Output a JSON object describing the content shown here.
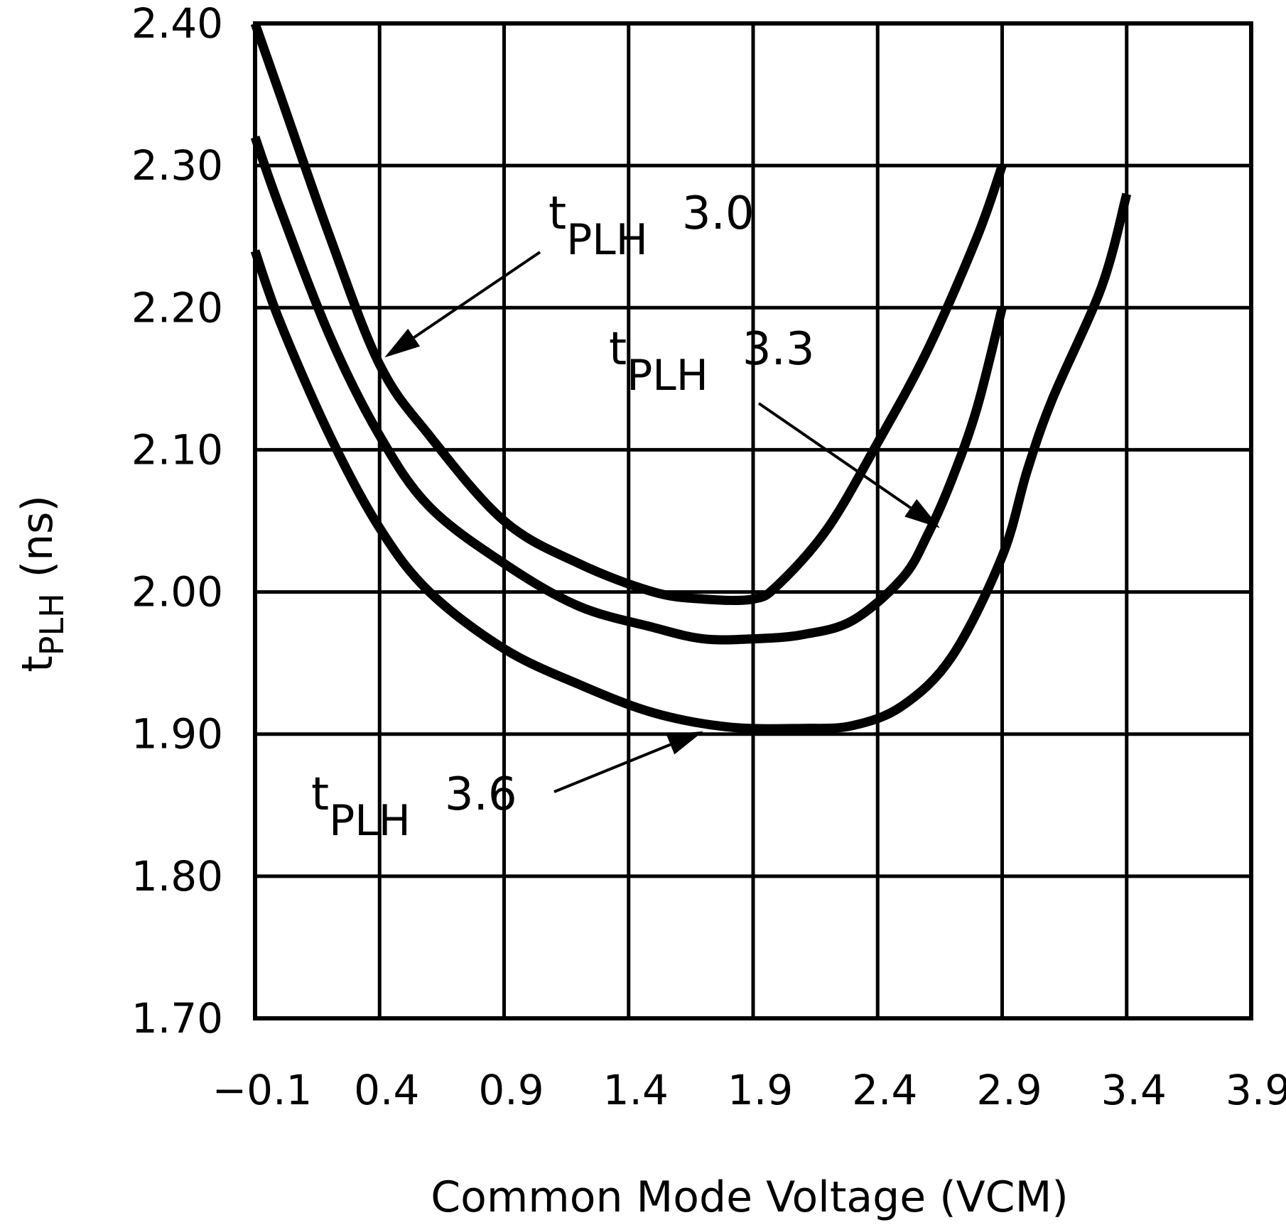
{
  "chart_data": {
    "type": "line",
    "title": "",
    "xlabel": "Common Mode Voltage (VCM)",
    "ylabel": {
      "main": "t",
      "sub": "PLH",
      "unit": "(ns)"
    },
    "xlim": [
      -0.1,
      3.9
    ],
    "ylim": [
      1.7,
      2.4
    ],
    "x_ticks": [
      -0.1,
      0.4,
      0.9,
      1.4,
      1.9,
      2.4,
      2.9,
      3.4,
      3.9
    ],
    "x_tick_labels": [
      "−0.1",
      "0.4",
      "0.9",
      "1.4",
      "1.9",
      "2.4",
      "2.9",
      "3.4",
      "3.9"
    ],
    "y_ticks": [
      1.7,
      1.8,
      1.9,
      2.0,
      2.1,
      2.2,
      2.3,
      2.4
    ],
    "y_tick_labels": [
      "1.70",
      "1.80",
      "1.90",
      "2.00",
      "2.10",
      "2.20",
      "2.30",
      "2.40"
    ],
    "grid": true,
    "series": [
      {
        "name": "tPLH 3.0",
        "label_main": "t",
        "label_sub": "PLH",
        "label_value": "3.0",
        "x": [
          -0.1,
          0.0,
          0.2,
          0.4,
          0.6,
          0.9,
          1.2,
          1.5,
          1.7,
          1.9,
          2.0,
          2.2,
          2.4,
          2.6,
          2.8,
          2.9
        ],
        "y": [
          2.4,
          2.35,
          2.25,
          2.16,
          2.11,
          2.05,
          2.02,
          2.0,
          1.995,
          1.995,
          2.005,
          2.045,
          2.105,
          2.17,
          2.25,
          2.3
        ]
      },
      {
        "name": "tPLH 3.3",
        "label_main": "t",
        "label_sub": "PLH",
        "label_value": "3.3",
        "x": [
          -0.1,
          0.0,
          0.2,
          0.4,
          0.6,
          0.9,
          1.2,
          1.5,
          1.7,
          1.9,
          2.1,
          2.3,
          2.5,
          2.6,
          2.7,
          2.8,
          2.9
        ],
        "y": [
          2.32,
          2.27,
          2.18,
          2.11,
          2.06,
          2.02,
          1.99,
          1.975,
          1.967,
          1.967,
          1.97,
          1.98,
          2.01,
          2.04,
          2.08,
          2.13,
          2.2
        ]
      },
      {
        "name": "tPLH 3.6",
        "label_main": "t",
        "label_sub": "PLH",
        "label_value": "3.6",
        "x": [
          -0.1,
          0.0,
          0.2,
          0.4,
          0.6,
          0.9,
          1.2,
          1.5,
          1.8,
          2.1,
          2.3,
          2.5,
          2.7,
          2.9,
          3.0,
          3.1,
          3.3,
          3.4
        ],
        "y": [
          2.24,
          2.19,
          2.11,
          2.045,
          2.0,
          1.96,
          1.935,
          1.915,
          1.905,
          1.904,
          1.906,
          1.92,
          1.955,
          2.025,
          2.085,
          2.135,
          2.215,
          2.28
        ]
      }
    ],
    "annotations": [
      {
        "series": "tPLH 3.0",
        "main": "t",
        "sub": "PLH",
        "value": "3.0",
        "arrow_to": [
          0.42,
          2.165
        ]
      },
      {
        "series": "tPLH 3.3",
        "main": "t",
        "sub": "PLH",
        "value": "3.3",
        "arrow_to": [
          2.65,
          2.045
        ]
      },
      {
        "series": "tPLH 3.6",
        "main": "t",
        "sub": "PLH",
        "value": "3.6",
        "arrow_to": [
          1.7,
          1.902
        ]
      }
    ]
  }
}
